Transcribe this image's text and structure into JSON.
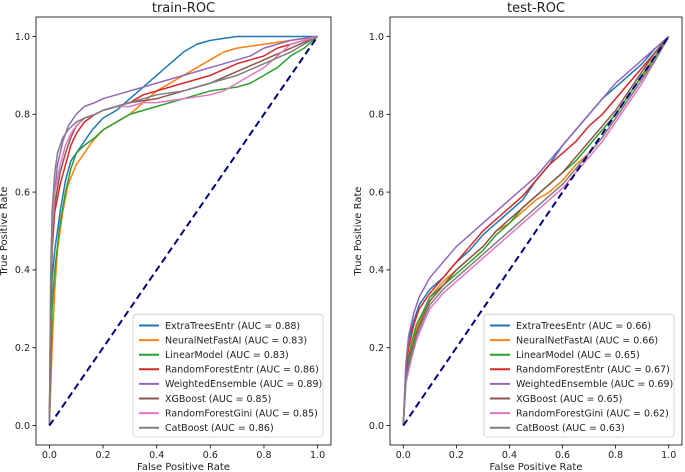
{
  "chart_data": [
    {
      "type": "line",
      "title": "train-ROC",
      "xlabel": "False Positive Rate",
      "ylabel": "True Positive Rate",
      "xlim": [
        0,
        1
      ],
      "ylim": [
        0,
        1
      ],
      "xticks": [
        "0.0",
        "0.2",
        "0.4",
        "0.6",
        "0.8",
        "1.0"
      ],
      "yticks": [
        "0.0",
        "0.2",
        "0.4",
        "0.6",
        "0.8",
        "1.0"
      ],
      "legend_position": "lower-right",
      "diagonal": {
        "x": [
          0,
          1
        ],
        "y": [
          0,
          1
        ],
        "color": "#000080",
        "style": "dashed"
      },
      "series": [
        {
          "name": "ExtraTreesEntr (AUC = 0.88)",
          "color": "#1f77b4",
          "x": [
            0,
            0.005,
            0.01,
            0.02,
            0.04,
            0.06,
            0.08,
            0.1,
            0.13,
            0.16,
            0.2,
            0.25,
            0.3,
            0.35,
            0.4,
            0.45,
            0.5,
            0.55,
            0.6,
            0.65,
            0.7,
            0.75,
            0.8,
            0.9,
            1
          ],
          "y": [
            0,
            0.25,
            0.38,
            0.45,
            0.55,
            0.63,
            0.68,
            0.7,
            0.73,
            0.76,
            0.79,
            0.81,
            0.84,
            0.87,
            0.9,
            0.93,
            0.96,
            0.98,
            0.99,
            0.995,
            1,
            1,
            1,
            1,
            1
          ]
        },
        {
          "name": "NeuralNetFastAI (AUC = 0.83)",
          "color": "#ff7f0e",
          "x": [
            0,
            0.01,
            0.02,
            0.03,
            0.05,
            0.07,
            0.1,
            0.13,
            0.16,
            0.2,
            0.25,
            0.3,
            0.35,
            0.4,
            0.45,
            0.5,
            0.55,
            0.6,
            0.65,
            0.7,
            0.8,
            0.9,
            1
          ],
          "y": [
            0,
            0.2,
            0.35,
            0.45,
            0.55,
            0.62,
            0.67,
            0.7,
            0.73,
            0.76,
            0.78,
            0.8,
            0.83,
            0.86,
            0.88,
            0.9,
            0.92,
            0.94,
            0.96,
            0.97,
            0.98,
            0.99,
            1
          ]
        },
        {
          "name": "LinearModel (AUC = 0.83)",
          "color": "#2ca02c",
          "x": [
            0,
            0.01,
            0.02,
            0.04,
            0.06,
            0.08,
            0.1,
            0.13,
            0.17,
            0.2,
            0.25,
            0.3,
            0.35,
            0.4,
            0.5,
            0.6,
            0.7,
            0.75,
            0.8,
            0.85,
            0.9,
            0.95,
            1
          ],
          "y": [
            0,
            0.3,
            0.4,
            0.52,
            0.6,
            0.66,
            0.7,
            0.72,
            0.74,
            0.76,
            0.78,
            0.8,
            0.81,
            0.82,
            0.84,
            0.86,
            0.87,
            0.88,
            0.9,
            0.92,
            0.95,
            0.97,
            1
          ]
        },
        {
          "name": "RandomForestEntr (AUC = 0.86)",
          "color": "#d62728",
          "x": [
            0,
            0.005,
            0.01,
            0.02,
            0.04,
            0.06,
            0.08,
            0.1,
            0.13,
            0.17,
            0.2,
            0.25,
            0.3,
            0.35,
            0.4,
            0.5,
            0.6,
            0.7,
            0.8,
            0.85,
            0.9,
            1
          ],
          "y": [
            0,
            0.3,
            0.45,
            0.55,
            0.62,
            0.67,
            0.72,
            0.75,
            0.78,
            0.8,
            0.81,
            0.82,
            0.83,
            0.85,
            0.86,
            0.88,
            0.9,
            0.93,
            0.95,
            0.97,
            0.98,
            1
          ]
        },
        {
          "name": "WeightedEnsemble (AUC = 0.89)",
          "color": "#9467bd",
          "x": [
            0,
            0.005,
            0.01,
            0.02,
            0.03,
            0.05,
            0.07,
            0.1,
            0.13,
            0.17,
            0.2,
            0.25,
            0.3,
            0.35,
            0.4,
            0.45,
            0.5,
            0.6,
            0.7,
            0.75,
            0.8,
            0.9,
            1
          ],
          "y": [
            0,
            0.35,
            0.5,
            0.6,
            0.67,
            0.73,
            0.77,
            0.8,
            0.82,
            0.83,
            0.84,
            0.85,
            0.86,
            0.87,
            0.88,
            0.89,
            0.9,
            0.92,
            0.94,
            0.95,
            0.97,
            0.99,
            1
          ]
        },
        {
          "name": "XGBoost (AUC = 0.85)",
          "color": "#8c564b",
          "x": [
            0,
            0.005,
            0.01,
            0.02,
            0.04,
            0.06,
            0.08,
            0.1,
            0.13,
            0.17,
            0.2,
            0.25,
            0.3,
            0.4,
            0.5,
            0.6,
            0.7,
            0.8,
            0.9,
            1
          ],
          "y": [
            0,
            0.33,
            0.45,
            0.57,
            0.65,
            0.7,
            0.74,
            0.77,
            0.79,
            0.8,
            0.81,
            0.82,
            0.83,
            0.84,
            0.86,
            0.88,
            0.91,
            0.94,
            0.97,
            1
          ]
        },
        {
          "name": "RandomForestGini (AUC = 0.85)",
          "color": "#e377c2",
          "x": [
            0,
            0.005,
            0.01,
            0.02,
            0.04,
            0.06,
            0.08,
            0.1,
            0.13,
            0.17,
            0.2,
            0.25,
            0.3,
            0.35,
            0.4,
            0.5,
            0.6,
            0.65,
            0.7,
            0.75,
            0.8,
            0.85,
            0.9,
            1
          ],
          "y": [
            0,
            0.35,
            0.5,
            0.6,
            0.67,
            0.72,
            0.75,
            0.77,
            0.79,
            0.8,
            0.81,
            0.82,
            0.82,
            0.83,
            0.83,
            0.84,
            0.85,
            0.86,
            0.88,
            0.9,
            0.92,
            0.95,
            0.98,
            1
          ]
        },
        {
          "name": "CatBoost (AUC = 0.86)",
          "color": "#7f7f7f",
          "x": [
            0,
            0.005,
            0.01,
            0.02,
            0.03,
            0.05,
            0.07,
            0.1,
            0.13,
            0.17,
            0.2,
            0.25,
            0.3,
            0.35,
            0.4,
            0.5,
            0.6,
            0.7,
            0.8,
            0.9,
            1
          ],
          "y": [
            0,
            0.4,
            0.55,
            0.65,
            0.7,
            0.74,
            0.76,
            0.78,
            0.79,
            0.8,
            0.81,
            0.82,
            0.83,
            0.84,
            0.85,
            0.86,
            0.88,
            0.9,
            0.93,
            0.96,
            1
          ]
        }
      ]
    },
    {
      "type": "line",
      "title": "test-ROC",
      "xlabel": "False Positive Rate",
      "ylabel": "True Positive Rate",
      "xlim": [
        0,
        1
      ],
      "ylim": [
        0,
        1
      ],
      "xticks": [
        "0.0",
        "0.2",
        "0.4",
        "0.6",
        "0.8",
        "1.0"
      ],
      "yticks": [
        "0.0",
        "0.2",
        "0.4",
        "0.6",
        "0.8",
        "1.0"
      ],
      "legend_position": "lower-right",
      "diagonal": {
        "x": [
          0,
          1
        ],
        "y": [
          0,
          1
        ],
        "color": "#000080",
        "style": "dashed"
      },
      "series": [
        {
          "name": "ExtraTreesEntr (AUC = 0.66)",
          "color": "#1f77b4",
          "x": [
            0,
            0.01,
            0.02,
            0.04,
            0.06,
            0.1,
            0.15,
            0.2,
            0.25,
            0.3,
            0.35,
            0.4,
            0.45,
            0.5,
            0.55,
            0.6,
            0.65,
            0.7,
            0.75,
            0.8,
            0.85,
            0.9,
            0.95,
            1
          ],
          "y": [
            0,
            0.15,
            0.22,
            0.27,
            0.31,
            0.35,
            0.38,
            0.42,
            0.45,
            0.49,
            0.52,
            0.55,
            0.58,
            0.63,
            0.67,
            0.72,
            0.76,
            0.8,
            0.84,
            0.87,
            0.9,
            0.93,
            0.97,
            1
          ]
        },
        {
          "name": "NeuralNetFastAI (AUC = 0.66)",
          "color": "#ff7f0e",
          "x": [
            0,
            0.01,
            0.03,
            0.05,
            0.08,
            0.1,
            0.15,
            0.2,
            0.25,
            0.3,
            0.35,
            0.4,
            0.45,
            0.5,
            0.55,
            0.6,
            0.65,
            0.7,
            0.75,
            0.8,
            0.85,
            0.9,
            0.95,
            1
          ],
          "y": [
            0,
            0.12,
            0.2,
            0.25,
            0.3,
            0.33,
            0.37,
            0.4,
            0.43,
            0.46,
            0.5,
            0.52,
            0.55,
            0.58,
            0.6,
            0.63,
            0.67,
            0.7,
            0.74,
            0.79,
            0.84,
            0.89,
            0.95,
            1
          ]
        },
        {
          "name": "LinearModel (AUC = 0.65)",
          "color": "#2ca02c",
          "x": [
            0,
            0.01,
            0.03,
            0.05,
            0.08,
            0.1,
            0.15,
            0.2,
            0.25,
            0.3,
            0.35,
            0.4,
            0.45,
            0.5,
            0.55,
            0.6,
            0.65,
            0.7,
            0.75,
            0.8,
            0.85,
            0.9,
            0.95,
            1
          ],
          "y": [
            0,
            0.13,
            0.21,
            0.26,
            0.3,
            0.33,
            0.36,
            0.39,
            0.42,
            0.45,
            0.49,
            0.52,
            0.56,
            0.59,
            0.62,
            0.65,
            0.68,
            0.72,
            0.76,
            0.8,
            0.85,
            0.9,
            0.95,
            1
          ]
        },
        {
          "name": "RandomForestEntr (AUC = 0.67)",
          "color": "#d62728",
          "x": [
            0,
            0.01,
            0.02,
            0.04,
            0.06,
            0.1,
            0.15,
            0.2,
            0.25,
            0.3,
            0.35,
            0.4,
            0.45,
            0.5,
            0.55,
            0.6,
            0.65,
            0.7,
            0.75,
            0.8,
            0.85,
            0.9,
            0.95,
            1
          ],
          "y": [
            0,
            0.14,
            0.2,
            0.26,
            0.3,
            0.34,
            0.38,
            0.42,
            0.46,
            0.5,
            0.53,
            0.56,
            0.59,
            0.63,
            0.67,
            0.7,
            0.73,
            0.77,
            0.8,
            0.84,
            0.88,
            0.92,
            0.96,
            1
          ]
        },
        {
          "name": "WeightedEnsemble (AUC = 0.69)",
          "color": "#9467bd",
          "x": [
            0,
            0.01,
            0.02,
            0.04,
            0.06,
            0.1,
            0.15,
            0.2,
            0.25,
            0.3,
            0.35,
            0.4,
            0.45,
            0.5,
            0.55,
            0.6,
            0.65,
            0.7,
            0.75,
            0.8,
            0.85,
            0.9,
            0.95,
            1
          ],
          "y": [
            0,
            0.16,
            0.23,
            0.29,
            0.33,
            0.38,
            0.42,
            0.46,
            0.49,
            0.52,
            0.55,
            0.58,
            0.61,
            0.64,
            0.68,
            0.72,
            0.76,
            0.8,
            0.84,
            0.88,
            0.91,
            0.94,
            0.97,
            1
          ]
        },
        {
          "name": "XGBoost (AUC = 0.65)",
          "color": "#8c564b",
          "x": [
            0,
            0.01,
            0.03,
            0.05,
            0.08,
            0.1,
            0.15,
            0.2,
            0.25,
            0.3,
            0.35,
            0.4,
            0.45,
            0.5,
            0.55,
            0.6,
            0.65,
            0.7,
            0.75,
            0.8,
            0.85,
            0.9,
            0.95,
            1
          ],
          "y": [
            0,
            0.12,
            0.19,
            0.24,
            0.29,
            0.32,
            0.36,
            0.4,
            0.43,
            0.46,
            0.5,
            0.53,
            0.56,
            0.59,
            0.62,
            0.65,
            0.69,
            0.73,
            0.77,
            0.81,
            0.86,
            0.91,
            0.96,
            1
          ]
        },
        {
          "name": "RandomForestGini (AUC = 0.62)",
          "color": "#e377c2",
          "x": [
            0,
            0.01,
            0.03,
            0.05,
            0.08,
            0.1,
            0.15,
            0.2,
            0.25,
            0.3,
            0.35,
            0.4,
            0.45,
            0.5,
            0.55,
            0.6,
            0.65,
            0.7,
            0.75,
            0.8,
            0.85,
            0.9,
            0.95,
            1
          ],
          "y": [
            0,
            0.11,
            0.17,
            0.22,
            0.27,
            0.3,
            0.34,
            0.37,
            0.4,
            0.43,
            0.46,
            0.49,
            0.52,
            0.55,
            0.58,
            0.61,
            0.65,
            0.69,
            0.73,
            0.78,
            0.83,
            0.88,
            0.94,
            1
          ]
        },
        {
          "name": "CatBoost (AUC = 0.63)",
          "color": "#7f7f7f",
          "x": [
            0,
            0.01,
            0.03,
            0.05,
            0.08,
            0.1,
            0.15,
            0.2,
            0.25,
            0.3,
            0.35,
            0.4,
            0.45,
            0.5,
            0.55,
            0.6,
            0.65,
            0.7,
            0.75,
            0.8,
            0.85,
            0.9,
            0.95,
            1
          ],
          "y": [
            0,
            0.12,
            0.18,
            0.23,
            0.28,
            0.31,
            0.35,
            0.38,
            0.41,
            0.44,
            0.47,
            0.5,
            0.53,
            0.56,
            0.59,
            0.62,
            0.66,
            0.7,
            0.74,
            0.79,
            0.84,
            0.89,
            0.94,
            1
          ]
        }
      ]
    }
  ]
}
